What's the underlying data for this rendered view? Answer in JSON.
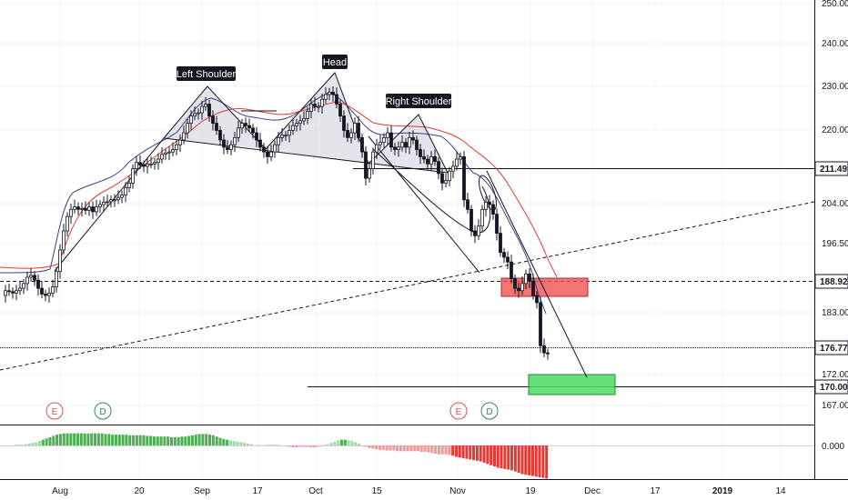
{
  "chart_data": {
    "type": "candlestick",
    "price_axis": {
      "ticks": [
        "250.00",
        "240.00",
        "230.00",
        "220.00",
        "211.49",
        "204.00",
        "196.50",
        "188.92",
        "183.00",
        "176.77",
        "172.00",
        "170.00",
        "167.00"
      ],
      "highlighted_levels": [
        "211.49",
        "188.92",
        "176.77",
        "170.00"
      ]
    },
    "oscillator_axis": {
      "ticks": [
        "0.000"
      ]
    },
    "time_axis": {
      "ticks": [
        "Aug",
        "20",
        "Sep",
        "17",
        "Oct",
        "15",
        "Nov",
        "19",
        "Dec",
        "17",
        "2019",
        "14"
      ],
      "bold_ticks": [
        "2019"
      ]
    },
    "pattern_labels": {
      "left_shoulder": "Left Shoulder",
      "head": "Head",
      "right_shoulder": "Right Shoulder"
    },
    "event_markers": [
      {
        "letter": "E",
        "kind": "earnings",
        "color": "#e04f4f"
      },
      {
        "letter": "D",
        "kind": "dividend",
        "color": "#2e8b57"
      },
      {
        "letter": "E",
        "kind": "earnings",
        "color": "#e04f4f"
      },
      {
        "letter": "D",
        "kind": "dividend",
        "color": "#2e8b57"
      }
    ],
    "zones": [
      {
        "name": "resistance",
        "color": "#ef5350",
        "low": 187.3,
        "high": 190.0
      },
      {
        "name": "target",
        "color": "#4cd964",
        "low": 169.1,
        "high": 171.9
      }
    ],
    "price_path": [
      [
        0,
        189
      ],
      [
        6,
        190
      ],
      [
        10,
        189.8
      ],
      [
        14,
        189.5
      ],
      [
        18,
        190
      ],
      [
        22,
        190.5
      ],
      [
        26,
        191.5
      ],
      [
        30,
        192.8
      ],
      [
        34,
        193.2
      ],
      [
        38,
        192.2
      ],
      [
        42,
        190.5
      ],
      [
        46,
        189.3
      ],
      [
        50,
        189.0
      ],
      [
        54,
        189.5
      ],
      [
        58,
        190.8
      ],
      [
        62,
        194
      ],
      [
        66,
        198.5
      ],
      [
        70,
        202.5
      ],
      [
        74,
        205.5
      ],
      [
        78,
        207
      ],
      [
        82,
        207.5
      ],
      [
        86,
        207
      ],
      [
        90,
        207.2
      ],
      [
        94,
        206.8
      ],
      [
        98,
        207.5
      ],
      [
        102,
        206.5
      ],
      [
        106,
        207.5
      ],
      [
        110,
        208
      ],
      [
        114,
        208.5
      ],
      [
        118,
        208.6
      ],
      [
        122,
        209
      ],
      [
        126,
        209
      ],
      [
        130,
        209.5
      ],
      [
        134,
        210
      ],
      [
        138,
        211.5
      ],
      [
        142,
        212.5
      ],
      [
        146,
        215.5
      ],
      [
        150,
        216.8
      ],
      [
        154,
        216.3
      ],
      [
        158,
        216
      ],
      [
        162,
        216.5
      ],
      [
        166,
        216.5
      ],
      [
        170,
        216.8
      ],
      [
        174,
        217.5
      ],
      [
        178,
        218.5
      ],
      [
        182,
        218.8
      ],
      [
        186,
        219
      ],
      [
        190,
        219.5
      ],
      [
        194,
        220.5
      ],
      [
        198,
        221.5
      ],
      [
        202,
        223
      ],
      [
        206,
        225
      ],
      [
        210,
        226.5
      ],
      [
        214,
        227
      ],
      [
        218,
        227.2
      ],
      [
        222,
        228.5
      ],
      [
        226,
        229
      ],
      [
        230,
        226.5
      ],
      [
        234,
        225
      ],
      [
        238,
        223.5
      ],
      [
        242,
        221.5
      ],
      [
        246,
        220
      ],
      [
        250,
        219.5
      ],
      [
        254,
        220.5
      ],
      [
        258,
        222
      ],
      [
        262,
        224
      ],
      [
        266,
        225
      ],
      [
        270,
        224.5
      ],
      [
        274,
        224
      ],
      [
        278,
        223
      ],
      [
        282,
        221.5
      ],
      [
        286,
        220
      ],
      [
        290,
        219
      ],
      [
        294,
        218
      ],
      [
        298,
        219
      ],
      [
        302,
        220.5
      ],
      [
        306,
        222
      ],
      [
        310,
        222.5
      ],
      [
        314,
        222.5
      ],
      [
        318,
        223.5
      ],
      [
        322,
        224.5
      ],
      [
        326,
        225
      ],
      [
        330,
        225.5
      ],
      [
        334,
        226
      ],
      [
        338,
        227.5
      ],
      [
        342,
        229
      ],
      [
        346,
        228.5
      ],
      [
        350,
        228.5
      ],
      [
        354,
        230
      ],
      [
        358,
        231
      ],
      [
        362,
        231.5
      ],
      [
        366,
        231
      ],
      [
        370,
        229
      ],
      [
        374,
        226.5
      ],
      [
        378,
        223.5
      ],
      [
        382,
        222
      ],
      [
        386,
        223
      ],
      [
        390,
        225
      ],
      [
        394,
        222
      ],
      [
        398,
        219
      ],
      [
        402,
        213.5
      ],
      [
        406,
        215.5
      ],
      [
        410,
        219
      ],
      [
        414,
        220.5
      ],
      [
        418,
        221
      ],
      [
        422,
        222
      ],
      [
        426,
        223
      ],
      [
        430,
        220
      ],
      [
        434,
        219.5
      ],
      [
        438,
        220
      ],
      [
        442,
        221
      ],
      [
        446,
        220
      ],
      [
        450,
        222
      ],
      [
        454,
        221.5
      ],
      [
        458,
        219.5
      ],
      [
        462,
        218
      ],
      [
        466,
        217.5
      ],
      [
        470,
        216.5
      ],
      [
        474,
        218
      ],
      [
        478,
        217
      ],
      [
        482,
        214.5
      ],
      [
        486,
        212.5
      ],
      [
        490,
        213
      ],
      [
        494,
        215
      ],
      [
        498,
        216
      ],
      [
        502,
        217.5
      ],
      [
        506,
        218
      ],
      [
        510,
        209
      ],
      [
        514,
        207
      ],
      [
        518,
        202.5
      ],
      [
        522,
        201.5
      ],
      [
        526,
        203.5
      ],
      [
        530,
        207
      ],
      [
        534,
        208.5
      ],
      [
        538,
        208
      ],
      [
        542,
        206
      ],
      [
        546,
        202
      ],
      [
        550,
        198
      ],
      [
        554,
        197
      ],
      [
        558,
        196
      ],
      [
        562,
        192.5
      ],
      [
        566,
        190.5
      ],
      [
        570,
        190
      ],
      [
        574,
        191.5
      ],
      [
        578,
        193.5
      ],
      [
        582,
        192
      ],
      [
        586,
        189
      ],
      [
        590,
        187.5
      ],
      [
        594,
        178.5
      ],
      [
        598,
        177
      ],
      [
        602,
        176.8
      ]
    ],
    "oscillator_values": [
      0.0,
      0.0,
      0.0,
      0.0,
      0.1,
      0.1,
      0.1,
      0.2,
      0.3,
      0.4,
      0.5,
      0.7,
      0.9,
      1.1,
      1.3,
      1.5,
      1.7,
      1.8,
      1.9,
      1.9,
      1.9,
      1.9,
      1.9,
      1.9,
      1.9,
      1.9,
      1.9,
      1.9,
      1.9,
      1.9,
      1.8,
      1.8,
      1.7,
      1.7,
      1.7,
      1.7,
      1.7,
      1.6,
      1.6,
      1.6,
      1.6,
      1.6,
      1.5,
      1.5,
      1.4,
      1.4,
      1.4,
      1.4,
      1.4,
      1.3,
      1.3,
      1.3,
      1.4,
      1.4,
      1.5,
      1.6,
      1.7,
      1.8,
      1.8,
      1.8,
      1.7,
      1.6,
      1.4,
      1.2,
      1.0,
      0.9,
      0.8,
      0.7,
      0.6,
      0.5,
      0.4,
      0.3,
      0.2,
      0.0,
      0.1,
      0.0,
      0.1,
      0.1,
      0.1,
      0.1,
      0.1,
      0.0,
      -0.1,
      -0.2,
      -0.3,
      -0.3,
      -0.2,
      -0.2,
      -0.2,
      -0.3,
      -0.3,
      -0.2,
      -0.1,
      0.1,
      0.2,
      0.4,
      0.6,
      0.8,
      0.9,
      0.9,
      0.8,
      0.7,
      0.5,
      0.3,
      -0.1,
      -0.2,
      -0.4,
      -0.5,
      -0.6,
      -0.7,
      -0.7,
      -0.8,
      -0.8,
      -0.8,
      -0.9,
      -0.9,
      -0.9,
      -0.9,
      -0.9,
      -0.9,
      -0.9,
      -1.0,
      -1.0,
      -1.1,
      -1.2,
      -1.3,
      -1.4,
      -1.4,
      -1.4,
      -1.5,
      -1.6,
      -1.8,
      -1.9,
      -2.0,
      -2.1,
      -2.2,
      -2.3,
      -2.4,
      -2.5,
      -2.7,
      -2.9,
      -3.1,
      -3.3,
      -3.5,
      -3.6,
      -3.7,
      -3.8,
      -3.9,
      -4.1,
      -4.3,
      -4.5,
      -4.6,
      -4.7,
      -4.8,
      -4.9,
      -5.0,
      -5.1,
      -5.2
    ]
  }
}
